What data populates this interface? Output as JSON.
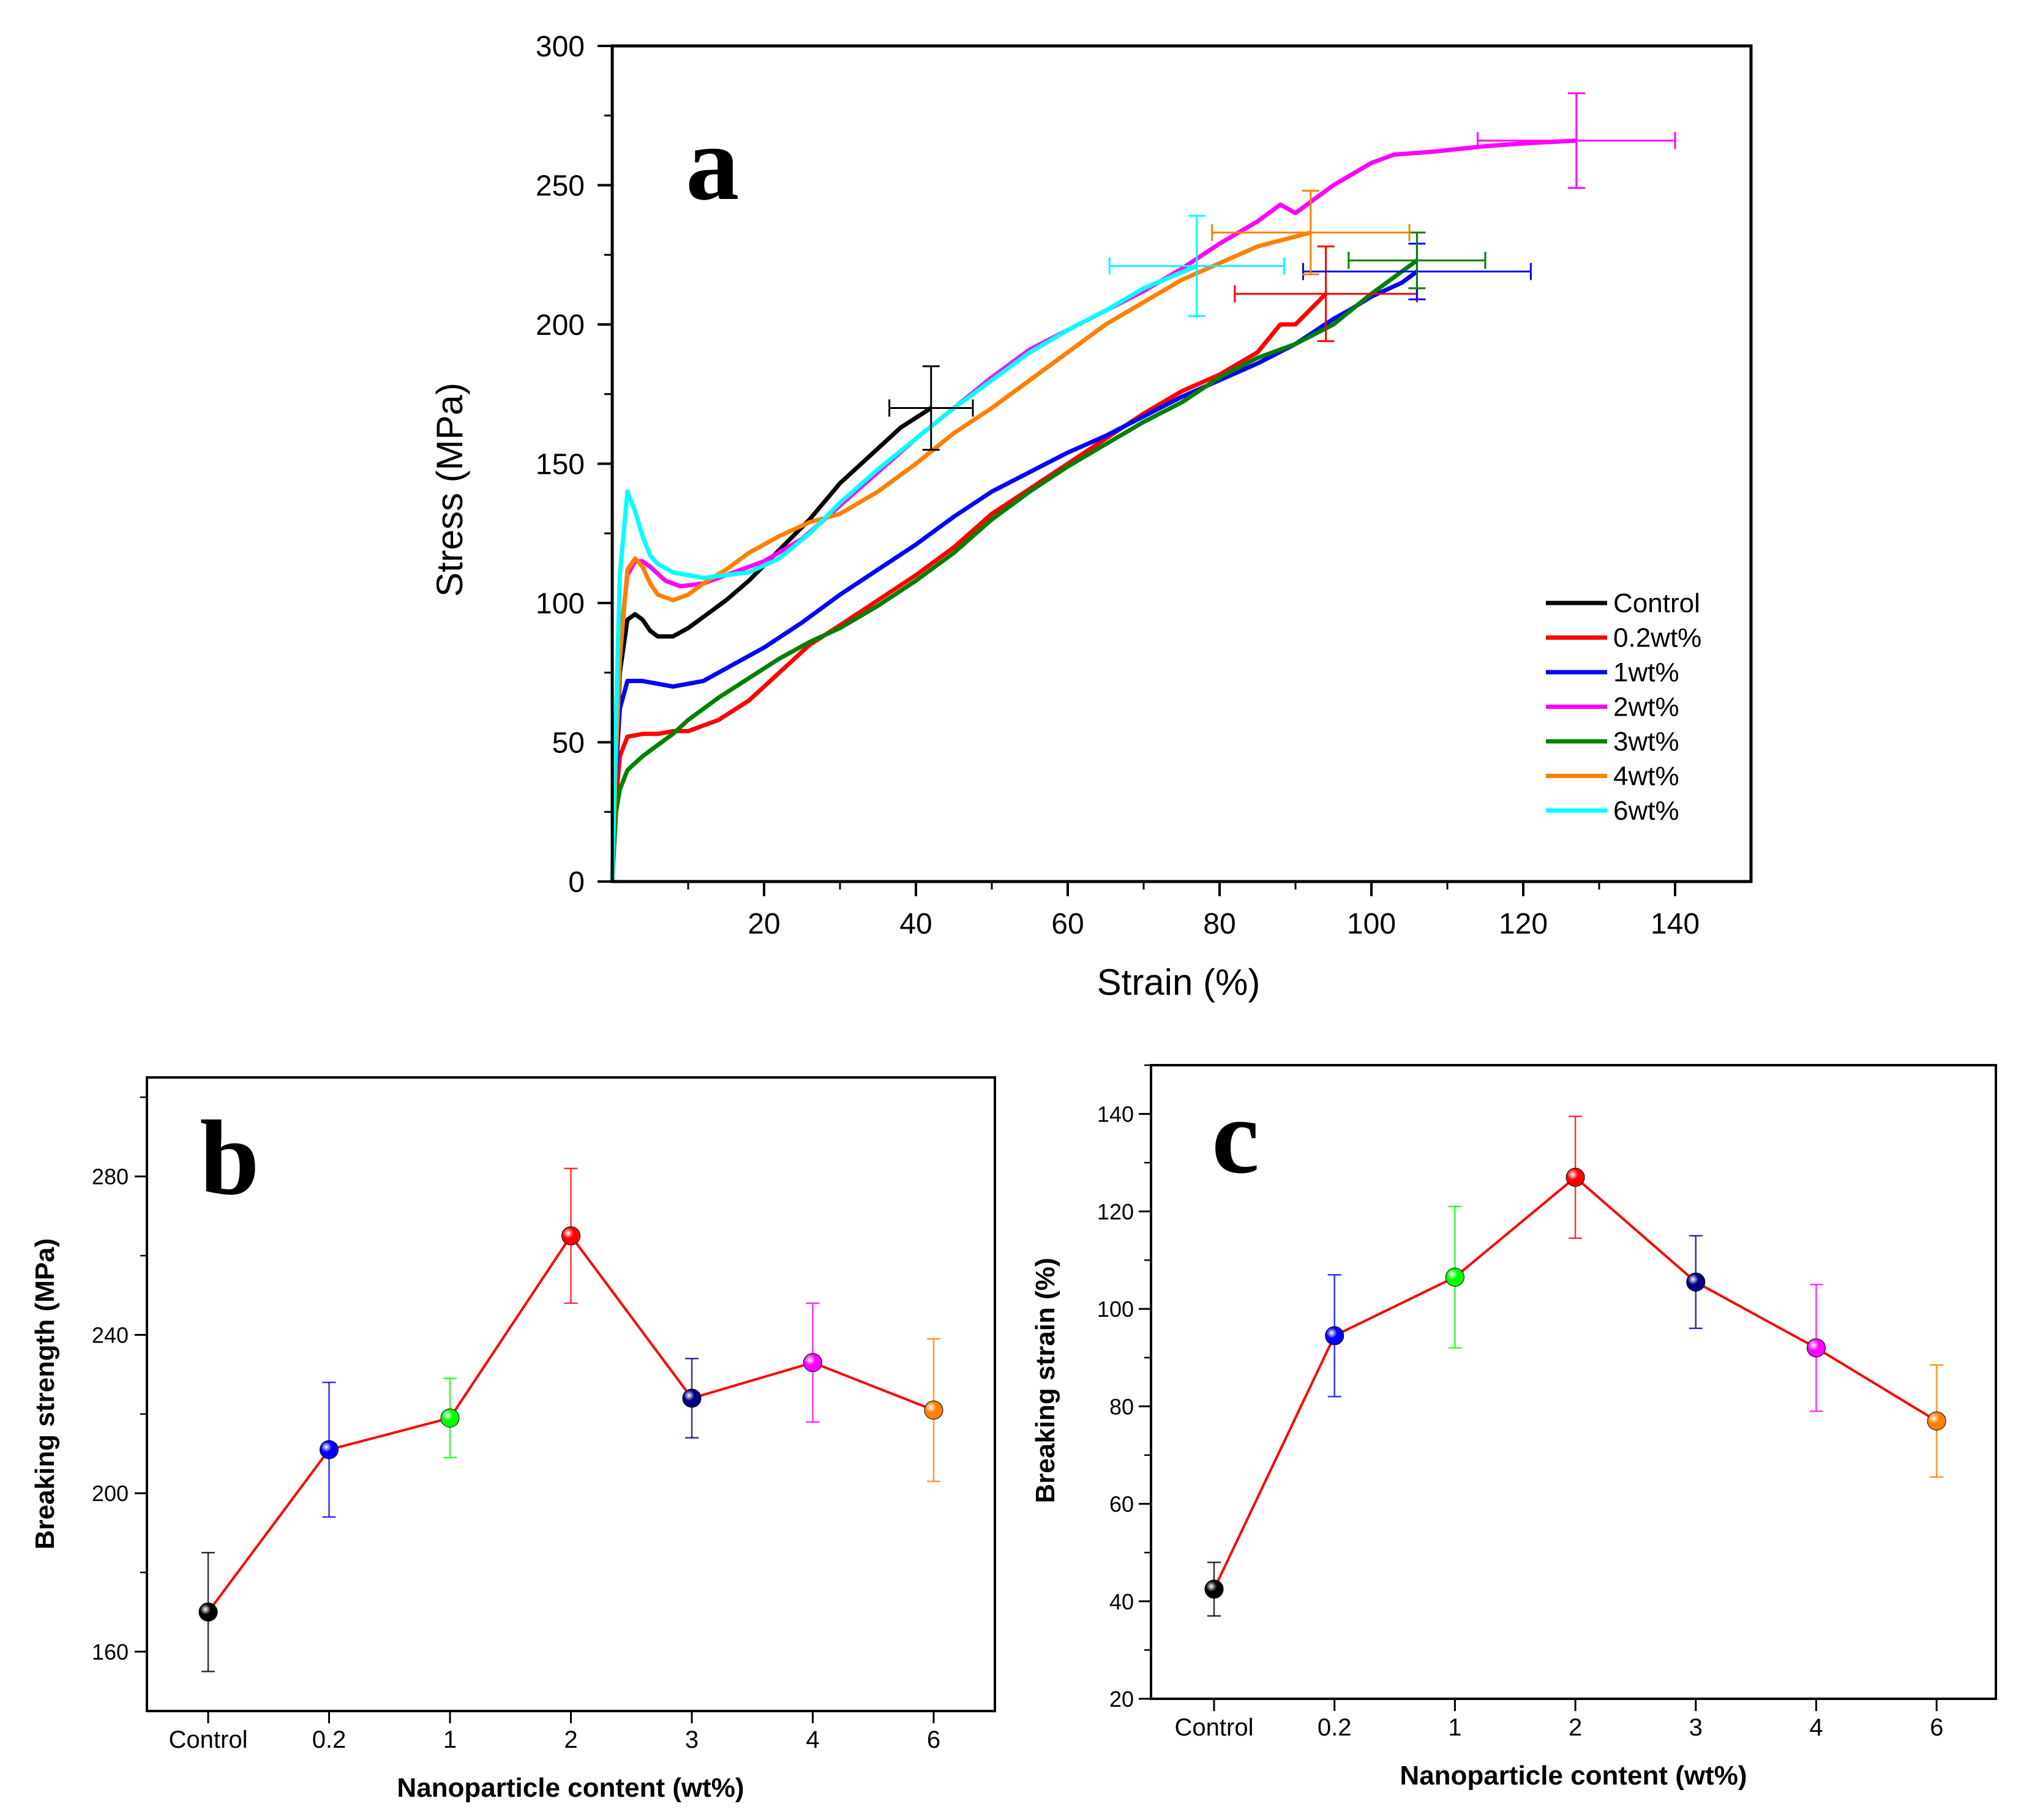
{
  "chart_data": [
    {
      "panel": "a",
      "type": "line",
      "xlabel": "Strain (%)",
      "ylabel": "Stress (MPa)",
      "xlim": [
        0,
        150
      ],
      "ylim": [
        0,
        300
      ],
      "xticks": [
        20,
        40,
        60,
        80,
        100,
        120,
        140
      ],
      "yticks": [
        0,
        50,
        100,
        150,
        200,
        250,
        300
      ],
      "legend_position": "bottom-right",
      "series": [
        {
          "name": "Control",
          "color": "#000000",
          "x": [
            0,
            0.5,
            1,
            2,
            3,
            4,
            5,
            6,
            8,
            10,
            12,
            15,
            18,
            22,
            26,
            30,
            34,
            38,
            42
          ],
          "y": [
            0,
            40,
            75,
            94,
            96,
            94,
            90,
            88,
            88,
            91,
            95,
            101,
            108,
            119,
            130,
            143,
            153,
            163,
            170
          ],
          "end": {
            "x": 42,
            "y": 170,
            "xerr": 5.5,
            "yerr": 15
          }
        },
        {
          "name": "0.2wt%",
          "color": "#ff0000",
          "x": [
            0,
            0.5,
            1,
            2,
            4,
            6,
            8,
            10,
            14,
            18,
            22,
            26,
            30,
            35,
            40,
            45,
            50,
            55,
            60,
            65,
            70,
            75,
            80,
            85,
            88,
            90,
            94
          ],
          "y": [
            0,
            30,
            45,
            52,
            53,
            53,
            54,
            54,
            58,
            65,
            75,
            85,
            92,
            101,
            110,
            120,
            132,
            141,
            150,
            159,
            168,
            176,
            182,
            190,
            200,
            200,
            211
          ],
          "end": {
            "x": 94,
            "y": 211,
            "xerr": 12,
            "yerr": 17
          }
        },
        {
          "name": "1wt%",
          "color": "#0000ff",
          "x": [
            0,
            0.5,
            1,
            2,
            4,
            8,
            12,
            16,
            20,
            25,
            30,
            35,
            40,
            45,
            50,
            55,
            60,
            65,
            70,
            75,
            80,
            85,
            90,
            95,
            97,
            100,
            104,
            106
          ],
          "y": [
            0,
            40,
            62,
            72,
            72,
            70,
            72,
            78,
            84,
            93,
            103,
            112,
            121,
            131,
            140,
            147,
            154,
            160,
            167,
            174,
            180,
            186,
            193,
            202,
            205,
            210,
            215,
            219
          ],
          "end": {
            "x": 106,
            "y": 219,
            "xerr": 15,
            "yerr": 10
          }
        },
        {
          "name": "2wt%",
          "color": "#ff00ff",
          "x": [
            0,
            0.5,
            1,
            2,
            3,
            4,
            5,
            7,
            9,
            12,
            15,
            20,
            25,
            30,
            35,
            40,
            45,
            50,
            55,
            60,
            65,
            70,
            75,
            80,
            85,
            88,
            90,
            95,
            100,
            103,
            108,
            115,
            120,
            127
          ],
          "y": [
            0,
            50,
            85,
            110,
            115,
            115,
            113,
            108,
            106,
            107,
            110,
            115,
            123,
            135,
            147,
            159,
            170,
            181,
            191,
            198,
            205,
            212,
            220,
            229,
            237,
            243,
            240,
            250,
            258,
            261,
            262,
            264,
            265,
            266
          ],
          "end": {
            "x": 127,
            "y": 266,
            "xerr": 13,
            "yerr": 17
          }
        },
        {
          "name": "3wt%",
          "color": "#008000",
          "x": [
            0,
            0.5,
            1,
            2,
            4,
            6,
            8,
            10,
            14,
            18,
            22,
            26,
            30,
            35,
            40,
            45,
            50,
            55,
            60,
            65,
            70,
            75,
            80,
            85,
            90,
            95,
            100,
            106
          ],
          "y": [
            0,
            25,
            33,
            40,
            45,
            49,
            53,
            58,
            66,
            73,
            80,
            86,
            91,
            99,
            108,
            118,
            130,
            140,
            149,
            157,
            165,
            172,
            181,
            188,
            193,
            200,
            211,
            223
          ],
          "end": {
            "x": 106,
            "y": 223,
            "xerr": 9,
            "yerr": 10
          }
        },
        {
          "name": "4wt%",
          "color": "#ff8000",
          "x": [
            0,
            0.5,
            1,
            2,
            3,
            4,
            5,
            6,
            8,
            10,
            12,
            15,
            18,
            22,
            26,
            30,
            35,
            40,
            45,
            50,
            55,
            60,
            65,
            70,
            75,
            80,
            85,
            92
          ],
          "y": [
            0,
            45,
            80,
            112,
            116,
            113,
            107,
            103,
            101,
            103,
            107,
            112,
            118,
            124,
            129,
            132,
            140,
            150,
            161,
            170,
            180,
            190,
            200,
            208,
            216,
            222,
            228,
            233
          ],
          "end": {
            "x": 92,
            "y": 233,
            "xerr": 13,
            "yerr": 15
          }
        },
        {
          "name": "6wt%",
          "color": "#00ffff",
          "x": [
            0,
            0.5,
            1,
            2,
            3,
            4,
            5,
            6,
            8,
            10,
            12,
            15,
            18,
            22,
            26,
            30,
            35,
            40,
            45,
            50,
            55,
            60,
            65,
            70,
            77
          ],
          "y": [
            0,
            60,
            110,
            140,
            133,
            124,
            117,
            114,
            111,
            110,
            109,
            110,
            111,
            116,
            125,
            136,
            148,
            159,
            170,
            180,
            190,
            198,
            205,
            213,
            221
          ],
          "end": {
            "x": 77,
            "y": 221,
            "xerr": 11.5,
            "yerr": 18
          }
        }
      ]
    },
    {
      "panel": "b",
      "type": "line",
      "xlabel": "Nanoparticle content (wt%)",
      "ylabel": "Breaking strength (MPa)",
      "categories": [
        "Control",
        "0.2",
        "1",
        "2",
        "3",
        "4",
        "6"
      ],
      "values": [
        170,
        211,
        219,
        265,
        224,
        233,
        221
      ],
      "errors": [
        15,
        17,
        10,
        17,
        10,
        15,
        18
      ],
      "marker_colors": [
        "#000000",
        "#0000ff",
        "#00ff00",
        "#ff0000",
        "#000080",
        "#ff00ff",
        "#ff8000"
      ],
      "line_color": "#ff0000",
      "ylim": [
        145,
        305
      ],
      "yticks": [
        160,
        200,
        240,
        280
      ]
    },
    {
      "panel": "c",
      "type": "line",
      "xlabel": "Nanoparticle content (wt%)",
      "ylabel": "Breaking strain (%)",
      "categories": [
        "Control",
        "0.2",
        "1",
        "2",
        "3",
        "4",
        "6"
      ],
      "values": [
        42.5,
        94.5,
        106.5,
        127,
        105.5,
        92,
        77
      ],
      "errors": [
        5.5,
        12.5,
        14.5,
        12.5,
        9.5,
        13,
        11.5
      ],
      "marker_colors": [
        "#000000",
        "#0000ff",
        "#00ff00",
        "#ff0000",
        "#000080",
        "#ff00ff",
        "#ff8000"
      ],
      "line_color": "#ff0000",
      "ylim": [
        20,
        150
      ],
      "yticks": [
        20,
        40,
        60,
        80,
        100,
        120,
        140
      ]
    }
  ],
  "panel_labels": {
    "a": "a",
    "b": "b",
    "c": "c"
  }
}
